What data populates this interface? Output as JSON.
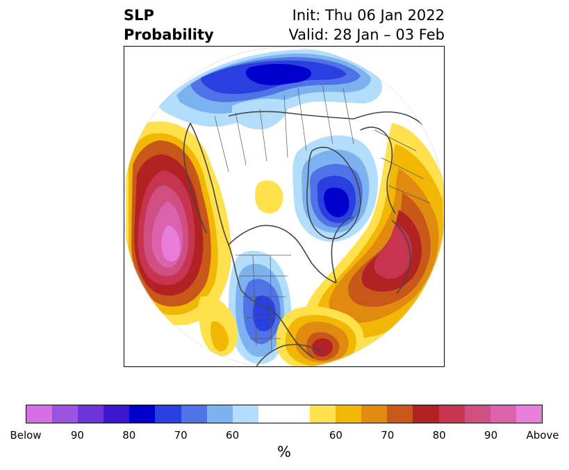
{
  "title": {
    "line1": "SLP",
    "line2": "Probability",
    "init": "Init: Thu 06 Jan 2022",
    "valid": "Valid: 28 Jan – 03 Feb"
  },
  "colorbar": {
    "label": "%",
    "segments": [
      {
        "color": "#d66fe6"
      },
      {
        "color": "#9b52e0"
      },
      {
        "color": "#6e34d8"
      },
      {
        "color": "#3d17cf"
      },
      {
        "color": "#0000cc"
      },
      {
        "color": "#2a3fdf"
      },
      {
        "color": "#4f72e6"
      },
      {
        "color": "#7db2f0"
      },
      {
        "color": "#b2defb"
      },
      {
        "color": "#ffffff"
      },
      {
        "color": "#ffffff"
      },
      {
        "color": "#ffe14d"
      },
      {
        "color": "#f2b705"
      },
      {
        "color": "#e08a10"
      },
      {
        "color": "#c8571a"
      },
      {
        "color": "#b22222"
      },
      {
        "color": "#c63450"
      },
      {
        "color": "#cf4f82"
      },
      {
        "color": "#dc62ae"
      },
      {
        "color": "#e87ddc"
      }
    ],
    "ticks": [
      "Below",
      "90",
      "80",
      "70",
      "60",
      "60",
      "70",
      "80",
      "90",
      "Above"
    ]
  },
  "map": {
    "projection": "north-polar-stereographic",
    "field": "SLP probability",
    "features": [
      {
        "name": "north-pacific-above-anomaly",
        "category": "above",
        "peak": "above"
      },
      {
        "name": "north-atlantic-above-anomaly",
        "category": "above",
        "peak": "85"
      },
      {
        "name": "gulf-of-mexico-above-anomaly",
        "category": "above",
        "peak": "75"
      },
      {
        "name": "eurasia-arctic-below-anomaly",
        "category": "below",
        "peak": "85"
      },
      {
        "name": "greenland-below-anomaly",
        "category": "below",
        "peak": "80"
      },
      {
        "name": "central-us-below-anomaly",
        "category": "below",
        "peak": "70"
      }
    ]
  }
}
